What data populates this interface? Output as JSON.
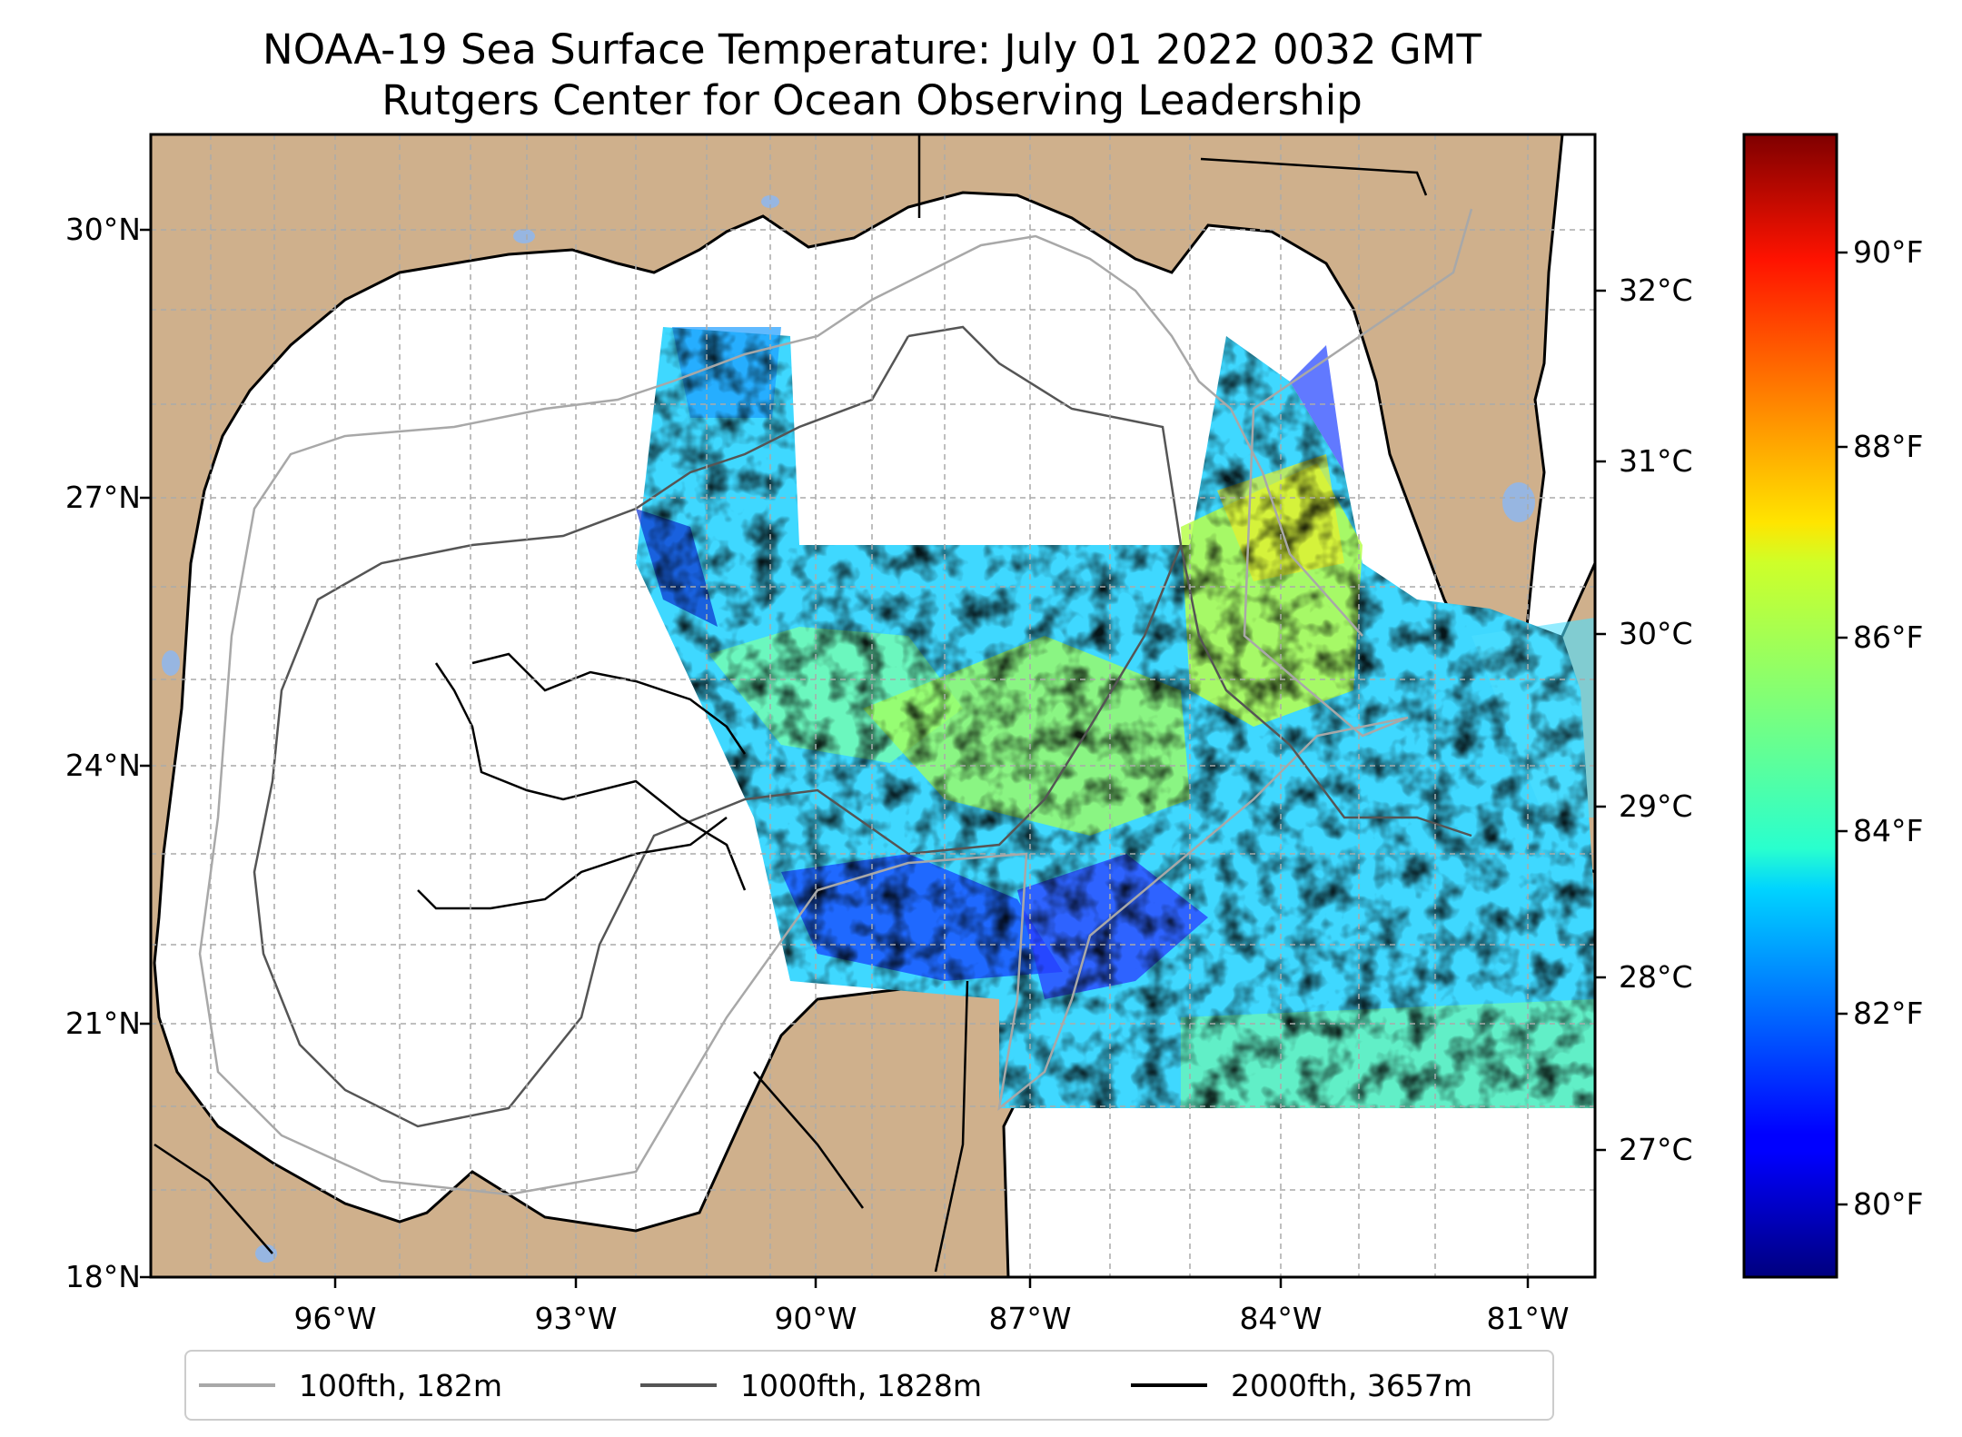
{
  "title": {
    "line1": "NOAA-19 Sea Surface Temperature: July 01 2022 0032 GMT",
    "line2": "Rutgers Center for Ocean Observing Leadership"
  },
  "map": {
    "lon_range": [
      -98.0,
      -80.5
    ],
    "lat_range": [
      18.0,
      31.0
    ],
    "lat_ticks": [
      "18°N",
      "21°N",
      "24°N",
      "27°N",
      "30°N"
    ],
    "lon_ticks": [
      "96°W",
      "93°W",
      "90°W",
      "87°W",
      "84°W",
      "81°W"
    ],
    "grid": true,
    "land_color": "#cfb08c",
    "lake_color": "#97b6e1",
    "ocean_color": "#ffffff"
  },
  "colorbar": {
    "colormap": "jet",
    "celsius_ticks": [
      "27°C",
      "28°C",
      "29°C",
      "30°C",
      "31°C",
      "32°C"
    ],
    "fahrenheit_ticks": [
      "80°F",
      "82°F",
      "84°F",
      "86°F",
      "88°F",
      "90°F"
    ]
  },
  "legend": {
    "items": [
      {
        "label": "100fth, 182m",
        "color": "#a8a8a8"
      },
      {
        "label": "1000fth, 1828m",
        "color": "#555555"
      },
      {
        "label": "2000fth, 3657m",
        "color": "#000000"
      }
    ]
  }
}
